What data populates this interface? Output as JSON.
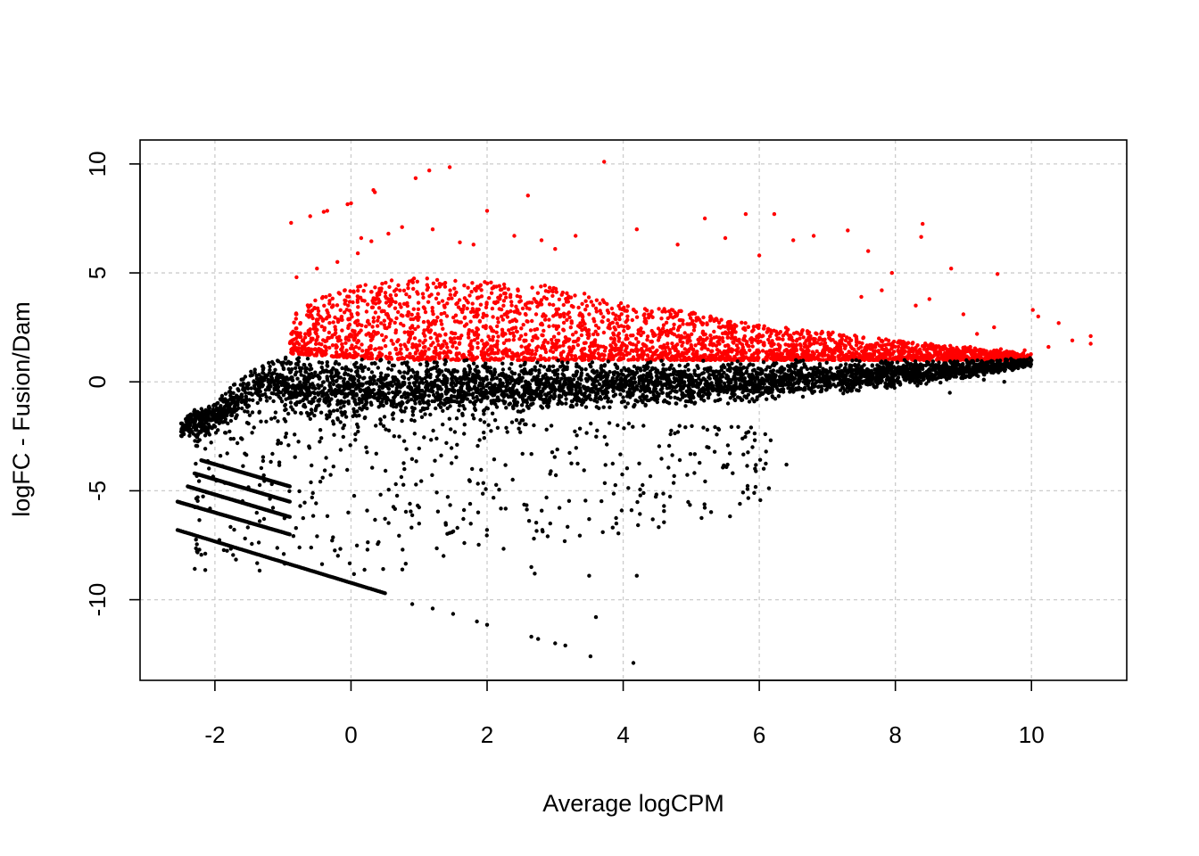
{
  "chart_data": {
    "type": "scatter",
    "title": "",
    "xlabel": "Average logCPM",
    "ylabel": "logFC - Fusion/Dam",
    "xlim": [
      -3.1,
      11.4
    ],
    "ylim": [
      -13.7,
      11.1
    ],
    "xticks": [
      -2,
      0,
      2,
      4,
      6,
      8,
      10
    ],
    "xtick_labels": [
      "-2",
      "0",
      "2",
      "4",
      "6",
      "8",
      "10"
    ],
    "yticks": [
      -10,
      -5,
      0,
      5,
      10
    ],
    "ytick_labels": [
      "-10",
      "-5",
      "0",
      "5",
      "10"
    ],
    "grid": true,
    "grid_style": "dotted light gray",
    "legend": "none",
    "colors": {
      "up": "#ff0000",
      "other": "#000000",
      "grid": "#cccccc",
      "frame": "#000000"
    },
    "series": [
      {
        "color": "#ff0000",
        "points": [
          [
            3.72,
            10.1
          ],
          [
            1.45,
            9.85
          ],
          [
            1.15,
            9.7
          ],
          [
            0.95,
            9.35
          ],
          [
            0.33,
            8.8
          ],
          [
            0.35,
            8.7
          ],
          [
            0.0,
            8.2
          ],
          [
            -0.05,
            8.15
          ],
          [
            2.6,
            8.55
          ],
          [
            -0.35,
            7.85
          ],
          [
            -0.4,
            7.8
          ],
          [
            -0.6,
            7.6
          ],
          [
            -0.88,
            7.3
          ],
          [
            2.0,
            7.85
          ],
          [
            6.22,
            7.7
          ],
          [
            8.4,
            7.25
          ],
          [
            5.8,
            7.7
          ],
          [
            5.2,
            7.5
          ],
          [
            4.2,
            7.0
          ],
          [
            7.3,
            6.95
          ],
          [
            6.8,
            6.7
          ],
          [
            8.38,
            6.65
          ],
          [
            7.6,
            6.0
          ],
          [
            6.5,
            6.5
          ],
          [
            8.82,
            5.2
          ],
          [
            9.5,
            4.95
          ],
          [
            7.95,
            5.0
          ],
          [
            10.02,
            3.3
          ],
          [
            10.1,
            3.0
          ],
          [
            10.4,
            2.7
          ],
          [
            10.87,
            2.1
          ],
          [
            10.87,
            1.75
          ],
          [
            10.6,
            1.9
          ],
          [
            10.25,
            1.6
          ],
          [
            9.9,
            1.45
          ],
          [
            9.7,
            1.3
          ],
          [
            9.55,
            1.5
          ],
          [
            9.3,
            1.45
          ],
          [
            9.1,
            1.6
          ],
          [
            8.9,
            1.5
          ],
          [
            8.7,
            1.6
          ],
          [
            9.2,
            2.2
          ],
          [
            9.45,
            2.5
          ],
          [
            9.0,
            3.1
          ],
          [
            8.5,
            3.8
          ],
          [
            8.3,
            3.5
          ],
          [
            7.8,
            4.2
          ],
          [
            7.5,
            3.9
          ],
          [
            0.15,
            6.6
          ],
          [
            0.3,
            6.45
          ],
          [
            0.55,
            6.8
          ],
          [
            0.75,
            7.1
          ],
          [
            1.2,
            7.0
          ],
          [
            1.6,
            6.4
          ],
          [
            2.4,
            6.7
          ],
          [
            2.8,
            6.5
          ],
          [
            3.3,
            6.7
          ],
          [
            4.8,
            6.3
          ],
          [
            5.5,
            6.6
          ],
          [
            6.0,
            5.8
          ],
          [
            -0.8,
            4.8
          ],
          [
            -0.5,
            5.2
          ],
          [
            -0.2,
            5.5
          ],
          [
            0.1,
            5.9
          ],
          [
            1.8,
            6.3
          ],
          [
            3.0,
            6.1
          ]
        ]
      },
      {
        "color": "#000000",
        "points": [
          [
            4.15,
            -12.9
          ],
          [
            3.52,
            -12.6
          ],
          [
            3.15,
            -12.1
          ],
          [
            3.0,
            -12.0
          ],
          [
            2.65,
            -11.7
          ],
          [
            2.75,
            -11.8
          ],
          [
            3.6,
            -10.8
          ],
          [
            2.0,
            -11.15
          ],
          [
            1.85,
            -11.0
          ],
          [
            1.5,
            -10.65
          ],
          [
            1.2,
            -10.4
          ],
          [
            0.9,
            -10.2
          ],
          [
            4.2,
            -8.9
          ],
          [
            3.5,
            -8.9
          ],
          [
            2.65,
            -8.5
          ],
          [
            2.7,
            -8.8
          ],
          [
            3.5,
            -6.3
          ],
          [
            3.9,
            -6.5
          ],
          [
            3.7,
            -6.9
          ],
          [
            4.3,
            -5.1
          ],
          [
            4.6,
            -5.7
          ],
          [
            6.4,
            -3.8
          ],
          [
            6.1,
            -3.2
          ],
          [
            5.9,
            -3.0
          ],
          [
            8.8,
            -0.5
          ],
          [
            9.3,
            0.1
          ],
          [
            9.6,
            0.0
          ],
          [
            9.75,
            0.9
          ],
          [
            9.9,
            1.0
          ]
        ]
      }
    ],
    "bands": [
      {
        "color": "#ff0000",
        "description": "dense upper cloud",
        "x_range": [
          -0.9,
          10.0
        ],
        "y_profile": [
          [
            -0.9,
            1.3,
            3.2
          ],
          [
            0.0,
            1.1,
            4.5
          ],
          [
            1.0,
            1.0,
            4.8
          ],
          [
            2.0,
            1.0,
            4.6
          ],
          [
            3.0,
            1.0,
            4.4
          ],
          [
            4.0,
            1.0,
            3.6
          ],
          [
            5.0,
            1.0,
            3.2
          ],
          [
            6.0,
            1.0,
            2.6
          ],
          [
            7.0,
            1.0,
            2.3
          ],
          [
            8.0,
            1.0,
            1.9
          ],
          [
            9.0,
            1.0,
            1.6
          ],
          [
            10.0,
            1.0,
            1.3
          ]
        ]
      },
      {
        "color": "#000000",
        "description": "dense central cloud",
        "x_range": [
          -2.5,
          10.0
        ],
        "y_profile": [
          [
            -2.5,
            -2.6,
            -1.6
          ],
          [
            -2.0,
            -2.4,
            -0.9
          ],
          [
            -1.6,
            -1.5,
            0.3
          ],
          [
            -1.2,
            -0.9,
            1.0
          ],
          [
            -0.8,
            -1.6,
            1.2
          ],
          [
            0.0,
            -1.7,
            1.1
          ],
          [
            1.0,
            -1.6,
            1.0
          ],
          [
            2.0,
            -1.5,
            1.0
          ],
          [
            3.0,
            -1.3,
            1.0
          ],
          [
            4.0,
            -1.2,
            1.0
          ],
          [
            5.0,
            -1.1,
            1.0
          ],
          [
            6.0,
            -0.9,
            1.0
          ],
          [
            7.0,
            -0.6,
            1.0
          ],
          [
            8.0,
            -0.3,
            1.0
          ],
          [
            9.0,
            0.1,
            1.0
          ],
          [
            10.0,
            0.7,
            1.1
          ]
        ]
      }
    ],
    "curves": [
      {
        "color": "#000000",
        "description": "lowest limit line",
        "from": [
          -2.55,
          -6.8
        ],
        "to": [
          0.5,
          -9.7
        ]
      },
      {
        "color": "#000000",
        "description": "limit line 2",
        "from": [
          -2.55,
          -5.5
        ],
        "to": [
          -0.9,
          -7.0
        ]
      },
      {
        "color": "#000000",
        "description": "limit line 3",
        "from": [
          -2.4,
          -4.8
        ],
        "to": [
          -0.9,
          -6.2
        ]
      },
      {
        "color": "#000000",
        "description": "limit line 4",
        "from": [
          -2.3,
          -4.2
        ],
        "to": [
          -0.9,
          -5.5
        ]
      },
      {
        "color": "#000000",
        "description": "limit line 5",
        "from": [
          -2.2,
          -3.6
        ],
        "to": [
          -0.9,
          -4.8
        ]
      }
    ]
  }
}
